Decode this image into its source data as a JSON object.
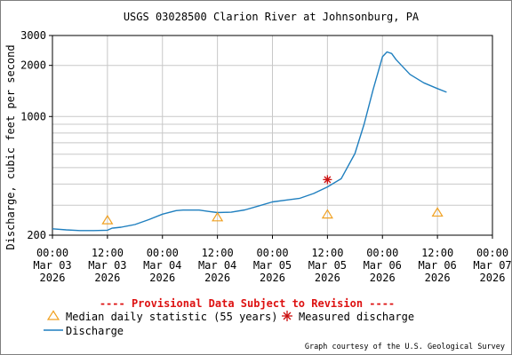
{
  "chart_data": {
    "type": "line",
    "title": "USGS 03028500 Clarion River at Johnsonburg, PA",
    "ylabel": "Discharge, cubic feet per second",
    "xlabel": "",
    "yscale": "log",
    "ylim": [
      200,
      3000
    ],
    "xlim": [
      "2026-03-03 00:00",
      "2026-03-07 00:00"
    ],
    "grid": true,
    "y_ticks": [
      {
        "value": 200,
        "label": "200"
      },
      {
        "value": 1000,
        "label": "1000"
      },
      {
        "value": 2000,
        "label": "2000"
      },
      {
        "value": 3000,
        "label": "3000"
      }
    ],
    "x_ticks": [
      {
        "time": "2026-03-03 00:00",
        "lines": [
          "00:00",
          "Mar 03",
          "2026"
        ]
      },
      {
        "time": "2026-03-03 12:00",
        "lines": [
          "12:00",
          "Mar 03",
          "2026"
        ]
      },
      {
        "time": "2026-03-04 00:00",
        "lines": [
          "00:00",
          "Mar 04",
          "2026"
        ]
      },
      {
        "time": "2026-03-04 12:00",
        "lines": [
          "12:00",
          "Mar 04",
          "2026"
        ]
      },
      {
        "time": "2026-03-05 00:00",
        "lines": [
          "00:00",
          "Mar 05",
          "2026"
        ]
      },
      {
        "time": "2026-03-05 12:00",
        "lines": [
          "12:00",
          "Mar 05",
          "2026"
        ]
      },
      {
        "time": "2026-03-06 00:00",
        "lines": [
          "00:00",
          "Mar 06",
          "2026"
        ]
      },
      {
        "time": "2026-03-06 12:00",
        "lines": [
          "12:00",
          "Mar 06",
          "2026"
        ]
      },
      {
        "time": "2026-03-07 00:00",
        "lines": [
          "00:00",
          "Mar 07",
          "2026"
        ]
      }
    ],
    "series": [
      {
        "name": "Discharge",
        "color": "#1f7fbf",
        "points": [
          [
            "2026-03-03 00:00",
            218
          ],
          [
            "2026-03-03 03:00",
            215
          ],
          [
            "2026-03-03 06:00",
            213
          ],
          [
            "2026-03-03 09:00",
            213
          ],
          [
            "2026-03-03 12:00",
            214
          ],
          [
            "2026-03-03 13:00",
            220
          ],
          [
            "2026-03-03 15:00",
            223
          ],
          [
            "2026-03-03 18:00",
            231
          ],
          [
            "2026-03-03 21:00",
            247
          ],
          [
            "2026-03-04 00:00",
            266
          ],
          [
            "2026-03-04 03:00",
            279
          ],
          [
            "2026-03-04 04:30",
            281
          ],
          [
            "2026-03-04 08:00",
            281
          ],
          [
            "2026-03-04 10:00",
            276
          ],
          [
            "2026-03-04 12:00",
            272
          ],
          [
            "2026-03-04 15:00",
            273
          ],
          [
            "2026-03-04 18:00",
            282
          ],
          [
            "2026-03-04 21:00",
            297
          ],
          [
            "2026-03-05 00:00",
            314
          ],
          [
            "2026-03-05 03:00",
            322
          ],
          [
            "2026-03-05 06:00",
            330
          ],
          [
            "2026-03-05 09:00",
            352
          ],
          [
            "2026-03-05 12:00",
            385
          ],
          [
            "2026-03-05 15:00",
            430
          ],
          [
            "2026-03-05 18:00",
            605
          ],
          [
            "2026-03-05 20:00",
            900
          ],
          [
            "2026-03-05 22:00",
            1450
          ],
          [
            "2026-03-06 00:00",
            2250
          ],
          [
            "2026-03-06 01:00",
            2400
          ],
          [
            "2026-03-06 02:00",
            2350
          ],
          [
            "2026-03-06 03:00",
            2160
          ],
          [
            "2026-03-06 06:00",
            1770
          ],
          [
            "2026-03-06 09:00",
            1580
          ],
          [
            "2026-03-06 12:00",
            1460
          ],
          [
            "2026-03-06 14:00",
            1390
          ]
        ]
      },
      {
        "name": "Median daily statistic (55 years)",
        "color": "#f0a020",
        "marker": "triangle",
        "points": [
          [
            "2026-03-03 12:00",
            245
          ],
          [
            "2026-03-04 12:00",
            255
          ],
          [
            "2026-03-05 12:00",
            265
          ],
          [
            "2026-03-06 12:00",
            272
          ]
        ]
      },
      {
        "name": "Measured discharge",
        "color": "#cc1111",
        "marker": "asterisk",
        "points": [
          [
            "2026-03-05 12:00",
            425
          ]
        ]
      }
    ]
  },
  "notice": "---- Provisional Data Subject to Revision ----",
  "legend": {
    "median": "Median daily statistic (55 years)",
    "measured": "Measured discharge",
    "discharge": "Discharge"
  },
  "credit": "Graph courtesy of the U.S. Geological Survey"
}
